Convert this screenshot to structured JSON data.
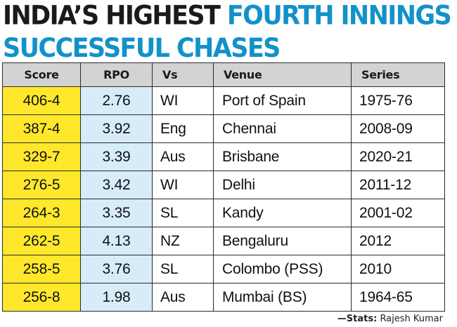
{
  "title": {
    "line1_dark": "INDIA’S HIGHEST",
    "line1_accent": "FOURTH INNINGS",
    "line2_accent": "SUCCESSFUL CHASES"
  },
  "colors": {
    "title_accent": "#1391c9",
    "score_column": "#ffe82b",
    "rpo_column": "#d6ecf8",
    "header_row": "#d3d3d3"
  },
  "chart_data": {
    "type": "table",
    "title": "INDIA’S HIGHEST FOURTH INNINGS SUCCESSFUL CHASES",
    "columns": [
      "Score",
      "RPO",
      "Vs",
      "Venue",
      "Series"
    ],
    "rows": [
      {
        "score": "406-4",
        "rpo": "2.76",
        "vs": "WI",
        "venue": "Port of Spain",
        "series": "1975-76"
      },
      {
        "score": "387-4",
        "rpo": "3.92",
        "vs": "Eng",
        "venue": "Chennai",
        "series": "2008-09"
      },
      {
        "score": "329-7",
        "rpo": "3.39",
        "vs": "Aus",
        "venue": "Brisbane",
        "series": "2020-21"
      },
      {
        "score": "276-5",
        "rpo": "3.42",
        "vs": "WI",
        "venue": "Delhi",
        "series": "2011-12"
      },
      {
        "score": "264-3",
        "rpo": "3.35",
        "vs": "SL",
        "venue": "Kandy",
        "series": "2001-02"
      },
      {
        "score": "262-5",
        "rpo": "4.13",
        "vs": "NZ",
        "venue": "Bengaluru",
        "series": "2012"
      },
      {
        "score": "258-5",
        "rpo": "3.76",
        "vs": "SL",
        "venue": "Colombo (PSS)",
        "series": "2010"
      },
      {
        "score": "256-8",
        "rpo": "1.98",
        "vs": "Aus",
        "venue": "Mumbai (BS)",
        "series": "1964-65"
      }
    ]
  },
  "credit": {
    "prefix": "—Stats:",
    "name": "Rajesh Kumar"
  }
}
